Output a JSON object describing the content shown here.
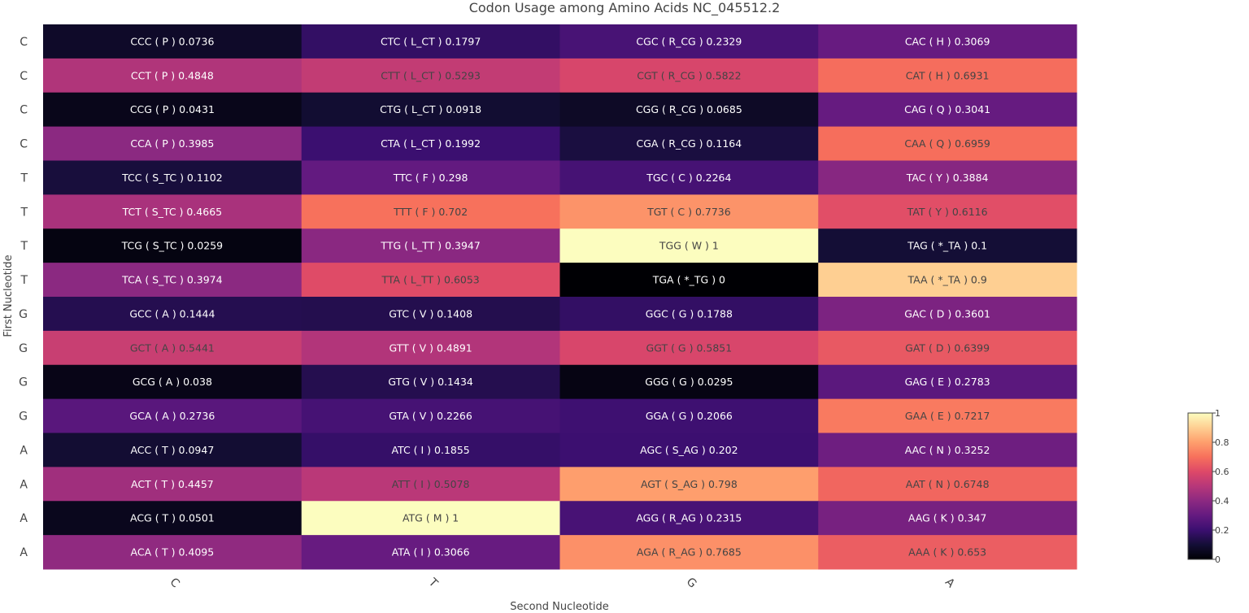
{
  "chart_data": {
    "type": "heatmap",
    "title": "Codon Usage among Amino Acids NC_045512.2",
    "xlabel": "Second Nucleotide",
    "ylabel": "First Nucleotide",
    "x_categories": [
      "C",
      "T",
      "G",
      "A"
    ],
    "y_categories": [
      "C",
      "C",
      "C",
      "C",
      "T",
      "T",
      "T",
      "T",
      "G",
      "G",
      "G",
      "G",
      "A",
      "A",
      "A",
      "A"
    ],
    "colorscale": "magma",
    "colorbar": {
      "range": [
        0,
        1
      ],
      "ticks": [
        "0",
        "0.2",
        "0.4",
        "0.6",
        "0.8",
        "1"
      ]
    },
    "rows": [
      {
        "cells": [
          {
            "label": "CCC ( P ) 0.0736",
            "value": 0.0736
          },
          {
            "label": "CTC ( L_CT ) 0.1797",
            "value": 0.1797
          },
          {
            "label": "CGC ( R_CG ) 0.2329",
            "value": 0.2329
          },
          {
            "label": "CAC ( H ) 0.3069",
            "value": 0.3069
          }
        ]
      },
      {
        "cells": [
          {
            "label": "CCT ( P ) 0.4848",
            "value": 0.4848
          },
          {
            "label": "CTT ( L_CT ) 0.5293",
            "value": 0.5293
          },
          {
            "label": "CGT ( R_CG ) 0.5822",
            "value": 0.5822
          },
          {
            "label": "CAT ( H ) 0.6931",
            "value": 0.6931
          }
        ]
      },
      {
        "cells": [
          {
            "label": "CCG ( P ) 0.0431",
            "value": 0.0431
          },
          {
            "label": "CTG ( L_CT ) 0.0918",
            "value": 0.0918
          },
          {
            "label": "CGG ( R_CG ) 0.0685",
            "value": 0.0685
          },
          {
            "label": "CAG ( Q ) 0.3041",
            "value": 0.3041
          }
        ]
      },
      {
        "cells": [
          {
            "label": "CCA ( P ) 0.3985",
            "value": 0.3985
          },
          {
            "label": "CTA ( L_CT ) 0.1992",
            "value": 0.1992
          },
          {
            "label": "CGA ( R_CG ) 0.1164",
            "value": 0.1164
          },
          {
            "label": "CAA ( Q ) 0.6959",
            "value": 0.6959
          }
        ]
      },
      {
        "cells": [
          {
            "label": "TCC ( S_TC ) 0.1102",
            "value": 0.1102
          },
          {
            "label": "TTC ( F ) 0.298",
            "value": 0.298
          },
          {
            "label": "TGC ( C ) 0.2264",
            "value": 0.2264
          },
          {
            "label": "TAC ( Y ) 0.3884",
            "value": 0.3884
          }
        ]
      },
      {
        "cells": [
          {
            "label": "TCT ( S_TC ) 0.4665",
            "value": 0.4665
          },
          {
            "label": "TTT ( F ) 0.702",
            "value": 0.702
          },
          {
            "label": "TGT ( C ) 0.7736",
            "value": 0.7736
          },
          {
            "label": "TAT ( Y ) 0.6116",
            "value": 0.6116
          }
        ]
      },
      {
        "cells": [
          {
            "label": "TCG ( S_TC ) 0.0259",
            "value": 0.0259
          },
          {
            "label": "TTG ( L_TT ) 0.3947",
            "value": 0.3947
          },
          {
            "label": "TGG ( W ) 1",
            "value": 1
          },
          {
            "label": "TAG ( *_TA ) 0.1",
            "value": 0.1
          }
        ]
      },
      {
        "cells": [
          {
            "label": "TCA ( S_TC ) 0.3974",
            "value": 0.3974
          },
          {
            "label": "TTA ( L_TT ) 0.6053",
            "value": 0.6053
          },
          {
            "label": "TGA ( *_TG ) 0",
            "value": 0
          },
          {
            "label": "TAA ( *_TA ) 0.9",
            "value": 0.9
          }
        ]
      },
      {
        "cells": [
          {
            "label": "GCC ( A ) 0.1444",
            "value": 0.1444
          },
          {
            "label": "GTC ( V ) 0.1408",
            "value": 0.1408
          },
          {
            "label": "GGC ( G ) 0.1788",
            "value": 0.1788
          },
          {
            "label": "GAC ( D ) 0.3601",
            "value": 0.3601
          }
        ]
      },
      {
        "cells": [
          {
            "label": "GCT ( A ) 0.5441",
            "value": 0.5441
          },
          {
            "label": "GTT ( V ) 0.4891",
            "value": 0.4891
          },
          {
            "label": "GGT ( G ) 0.5851",
            "value": 0.5851
          },
          {
            "label": "GAT ( D ) 0.6399",
            "value": 0.6399
          }
        ]
      },
      {
        "cells": [
          {
            "label": "GCG ( A ) 0.038",
            "value": 0.038
          },
          {
            "label": "GTG ( V ) 0.1434",
            "value": 0.1434
          },
          {
            "label": "GGG ( G ) 0.0295",
            "value": 0.0295
          },
          {
            "label": "GAG ( E ) 0.2783",
            "value": 0.2783
          }
        ]
      },
      {
        "cells": [
          {
            "label": "GCA ( A ) 0.2736",
            "value": 0.2736
          },
          {
            "label": "GTA ( V ) 0.2266",
            "value": 0.2266
          },
          {
            "label": "GGA ( G ) 0.2066",
            "value": 0.2066
          },
          {
            "label": "GAA ( E ) 0.7217",
            "value": 0.7217
          }
        ]
      },
      {
        "cells": [
          {
            "label": "ACC ( T ) 0.0947",
            "value": 0.0947
          },
          {
            "label": "ATC ( I ) 0.1855",
            "value": 0.1855
          },
          {
            "label": "AGC ( S_AG ) 0.202",
            "value": 0.202
          },
          {
            "label": "AAC ( N ) 0.3252",
            "value": 0.3252
          }
        ]
      },
      {
        "cells": [
          {
            "label": "ACT ( T ) 0.4457",
            "value": 0.4457
          },
          {
            "label": "ATT ( I ) 0.5078",
            "value": 0.5078
          },
          {
            "label": "AGT ( S_AG ) 0.798",
            "value": 0.798
          },
          {
            "label": "AAT ( N ) 0.6748",
            "value": 0.6748
          }
        ]
      },
      {
        "cells": [
          {
            "label": "ACG ( T ) 0.0501",
            "value": 0.0501
          },
          {
            "label": "ATG ( M ) 1",
            "value": 1
          },
          {
            "label": "AGG ( R_AG ) 0.2315",
            "value": 0.2315
          },
          {
            "label": "AAG ( K ) 0.347",
            "value": 0.347
          }
        ]
      },
      {
        "cells": [
          {
            "label": "ACA ( T ) 0.4095",
            "value": 0.4095
          },
          {
            "label": "ATA ( I ) 0.3066",
            "value": 0.3066
          },
          {
            "label": "AGA ( R_AG ) 0.7685",
            "value": 0.7685
          },
          {
            "label": "AAA ( K ) 0.653",
            "value": 0.653
          }
        ]
      }
    ]
  }
}
